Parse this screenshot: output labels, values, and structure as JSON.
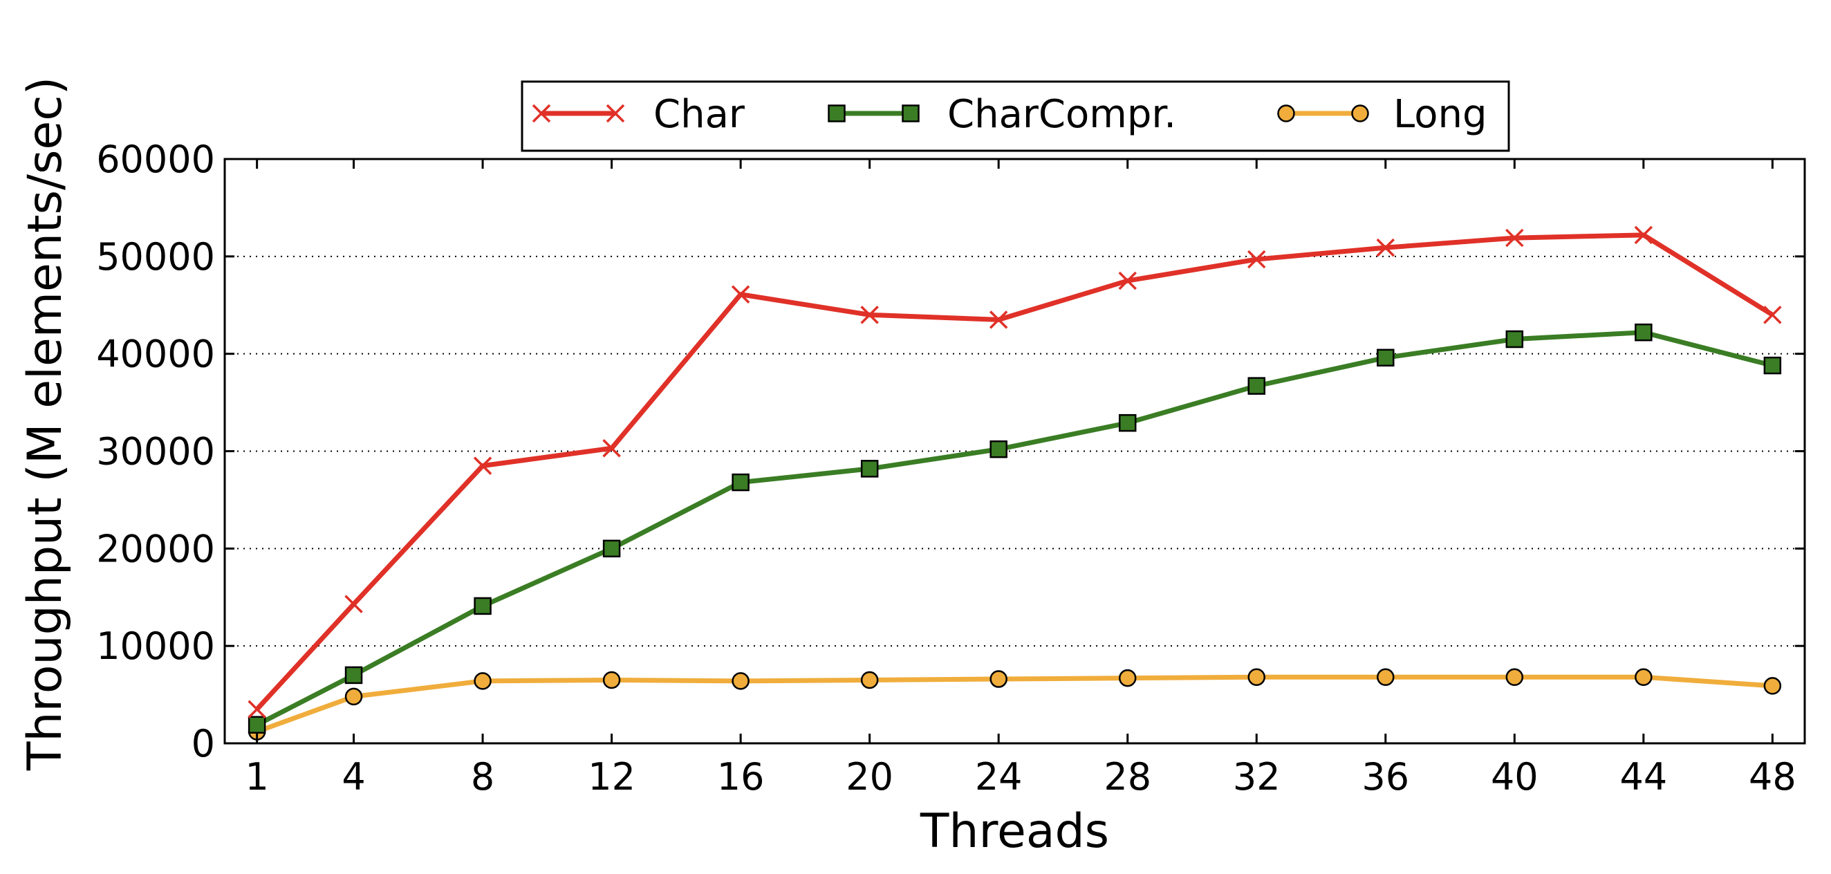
{
  "chart_data": {
    "type": "line",
    "title": "",
    "xlabel": "Threads",
    "ylabel": "Throughput (M elements/sec)",
    "x": [
      1,
      4,
      8,
      12,
      16,
      20,
      24,
      28,
      32,
      36,
      40,
      44,
      48
    ],
    "x_tick_labels": [
      "1",
      "4",
      "8",
      "12",
      "16",
      "20",
      "24",
      "28",
      "32",
      "36",
      "40",
      "44",
      "48"
    ],
    "xlim": [
      0,
      49
    ],
    "ylim": [
      0,
      60000
    ],
    "y_ticks": [
      0,
      10000,
      20000,
      30000,
      40000,
      50000,
      60000
    ],
    "y_tick_labels": [
      "0",
      "10000",
      "20000",
      "30000",
      "40000",
      "50000",
      "60000"
    ],
    "grid": "horizontal dotted",
    "legend_position": "top-center, above plot",
    "series": [
      {
        "name": "Char",
        "color": "#e03128",
        "marker": "x",
        "values": [
          3500,
          14300,
          28500,
          30300,
          46100,
          44000,
          43500,
          47500,
          49700,
          50900,
          51900,
          52200,
          44000
        ]
      },
      {
        "name": "CharCompr.",
        "color": "#3a7d24",
        "marker": "square",
        "values": [
          1900,
          7000,
          14100,
          20000,
          26800,
          28200,
          30200,
          32900,
          36700,
          39600,
          41500,
          42200,
          38800
        ]
      },
      {
        "name": "Long",
        "color": "#f0ad3c",
        "marker": "circle",
        "values": [
          1200,
          4800,
          6400,
          6500,
          6400,
          6500,
          6600,
          6700,
          6800,
          6800,
          6800,
          6800,
          5900
        ]
      }
    ]
  }
}
